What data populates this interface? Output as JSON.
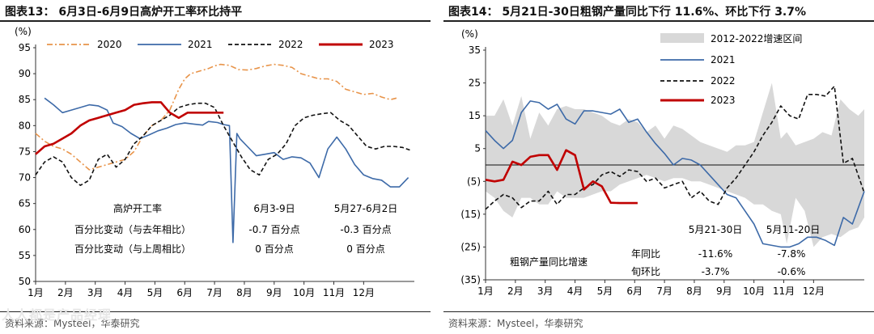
{
  "left_panel": {
    "title": "图表13： 6月3日-6月9日高炉开工率环比持平",
    "source": "资料来源：Mysteel，华泰研究",
    "annotation": {
      "header_label": "高炉开工率",
      "col1_header": "6月3-9日",
      "col2_header": "5月27-6月2日",
      "row1_label": "百分比变动（与去年相比）",
      "row1_col1": "-0.7 百分点",
      "row1_col2": "-0.3 百分点",
      "row2_label": "百分比变动（与上周相比）",
      "row2_col1": "0 百分点",
      "row2_col2": "0 百分点"
    }
  },
  "right_panel": {
    "title": "图表14： 5月21日-30日粗钢产量同比下行 11.6%、环比下行 3.7%",
    "source": "资料来源：Mysteel，华泰研究",
    "annotation": {
      "header_label": "粗钢产量同比增速",
      "col1_header": "5月21-30日",
      "col2_header": "5月11-20日",
      "row1_label": "年同比",
      "row1_col1": "-11.6%",
      "row1_col2": "-7.8%",
      "row2_label": "旬环比",
      "row2_col1": "-3.7%",
      "row2_col2": "-0.6%"
    }
  },
  "watermark": "人人都是产品经理",
  "chart_data": [
    {
      "type": "line",
      "title": "高炉开工率",
      "ylabel": "(%)",
      "ylim": [
        50,
        95
      ],
      "yticks": [
        50,
        55,
        60,
        65,
        70,
        75,
        80,
        85,
        90,
        95
      ],
      "x_domain": [
        0,
        12.7
      ],
      "x_tick_labels": [
        "1月",
        "2月",
        "3月",
        "4月",
        "5月",
        "6月",
        "7月",
        "8月",
        "9月",
        "10月",
        "11月",
        "12月"
      ],
      "series": [
        {
          "name": "2020",
          "color": "#e8944a",
          "style": "dashdot",
          "x": [
            0,
            0.3,
            0.6,
            0.9,
            1.2,
            1.5,
            1.8,
            2.1,
            2.4,
            2.7,
            3.0,
            3.3,
            3.6,
            3.9,
            4.2,
            4.5,
            4.8,
            5.0,
            5.2,
            5.5,
            5.8,
            6.0,
            6.2,
            6.5,
            6.8,
            7.1,
            7.4,
            7.7,
            8.0,
            8.3,
            8.6,
            8.9,
            9.2,
            9.5,
            9.8,
            10.1,
            10.4,
            10.7,
            11.0,
            11.3,
            11.6,
            11.9,
            12.1
          ],
          "values": [
            78.5,
            77,
            76,
            75.5,
            74.5,
            73,
            71.5,
            72,
            72.5,
            73,
            73.5,
            75,
            78,
            80,
            81,
            83,
            87,
            89,
            90,
            90.5,
            91,
            91.5,
            91.8,
            91.6,
            90.8,
            90.7,
            91,
            91.5,
            91.8,
            91.6,
            91.2,
            90,
            89.5,
            89,
            89,
            88.5,
            87,
            86.5,
            86,
            86.2,
            85.5,
            85,
            85.3
          ]
        },
        {
          "name": "2021",
          "color": "#3d6aa8",
          "style": "solid",
          "x": [
            0.3,
            0.6,
            0.9,
            1.2,
            1.5,
            1.8,
            2.1,
            2.4,
            2.6,
            2.9,
            3.2,
            3.5,
            3.8,
            4.1,
            4.4,
            4.7,
            5.0,
            5.3,
            5.6,
            5.8,
            6.1,
            6.3,
            6.5,
            6.62,
            6.75,
            6.85,
            7.1,
            7.4,
            7.7,
            8.0,
            8.3,
            8.6,
            8.9,
            9.2,
            9.5,
            9.8,
            10.1,
            10.4,
            10.7,
            11.0,
            11.3,
            11.6,
            11.9,
            12.2,
            12.5
          ],
          "values": [
            85.3,
            84,
            82.5,
            83,
            83.5,
            84,
            83.8,
            83,
            80.5,
            79.8,
            78.5,
            77.5,
            78.2,
            79,
            79.5,
            80.2,
            80.5,
            80.3,
            80.1,
            80.8,
            80.6,
            80.2,
            80,
            57.5,
            78.5,
            77.5,
            76,
            74.2,
            74.5,
            74.8,
            73.5,
            74,
            73.8,
            72.8,
            70,
            75.5,
            77.8,
            75.5,
            72.5,
            70.5,
            69.8,
            69.5,
            68.2,
            68.2,
            70
          ]
        },
        {
          "name": "2022",
          "color": "#111111",
          "style": "dashed",
          "x": [
            0,
            0.3,
            0.6,
            0.9,
            1.2,
            1.5,
            1.8,
            2.1,
            2.4,
            2.7,
            3.0,
            3.3,
            3.6,
            3.9,
            4.2,
            4.5,
            4.8,
            5.1,
            5.4,
            5.7,
            6.0,
            6.3,
            6.6,
            6.9,
            7.2,
            7.5,
            7.8,
            8.1,
            8.4,
            8.7,
            9.0,
            9.3,
            9.6,
            9.9,
            10.2,
            10.5,
            10.8,
            11.1,
            11.4,
            11.7,
            12.0,
            12.3,
            12.6
          ],
          "values": [
            70.5,
            73,
            74,
            73,
            70,
            68.5,
            69.5,
            73.5,
            74.5,
            72,
            73.5,
            76.5,
            78,
            80,
            81,
            82,
            83.5,
            84,
            84.3,
            84.3,
            83.5,
            80,
            77,
            74,
            71.5,
            70.5,
            73.5,
            74.5,
            76.5,
            80,
            81.5,
            82,
            82.3,
            82.5,
            81,
            80,
            78,
            76,
            75.5,
            76,
            76,
            75.8,
            75.2
          ]
        },
        {
          "name": "2023",
          "color": "#c00000",
          "style": "solid",
          "x": [
            0,
            0.3,
            0.6,
            0.9,
            1.2,
            1.5,
            1.8,
            2.1,
            2.4,
            2.7,
            3.0,
            3.3,
            3.6,
            3.9,
            4.2,
            4.5,
            4.8,
            5.1,
            5.4,
            5.7,
            6.0,
            6.3
          ],
          "values": [
            74.5,
            76,
            76.5,
            77.5,
            78.5,
            80,
            81,
            81.5,
            82,
            82.5,
            83,
            84,
            84.3,
            84.5,
            84.5,
            82.5,
            81.5,
            82.5,
            82.5,
            82.5,
            82.5,
            82.5
          ]
        }
      ]
    },
    {
      "type": "line",
      "title": "粗钢产量同比增速",
      "ylabel": "(%)",
      "ylim": [
        -35,
        35
      ],
      "yticks": [
        -35,
        -25,
        -15,
        -5,
        5,
        15,
        25,
        35
      ],
      "ytick_labels": [
        "(35)",
        "(25)",
        "(15)",
        "(5)",
        "5",
        "15",
        "25",
        "35"
      ],
      "x_domain": [
        0,
        12.7
      ],
      "x_tick_labels": [
        "1月",
        "2月",
        "3月",
        "4月",
        "5月",
        "6月",
        "7月",
        "8月",
        "9月",
        "10月",
        "11月",
        "12月"
      ],
      "band": {
        "name": "2012-2022增速区间",
        "color": "#d8d8d8",
        "x": [
          0,
          0.3,
          0.6,
          0.9,
          1.2,
          1.5,
          1.8,
          2.1,
          2.4,
          2.7,
          3.0,
          3.3,
          3.6,
          3.9,
          4.2,
          4.5,
          4.8,
          5.1,
          5.4,
          5.7,
          6.0,
          6.3,
          6.6,
          6.9,
          7.2,
          7.5,
          7.8,
          8.1,
          8.4,
          8.7,
          9.0,
          9.3,
          9.6,
          9.9,
          10.1,
          10.4,
          10.7,
          11.0,
          11.3,
          11.6,
          11.9,
          12.2,
          12.5,
          12.7
        ],
        "upper": [
          15,
          15,
          20,
          12,
          21,
          8,
          16,
          12,
          17,
          18,
          17,
          17,
          16,
          15,
          13,
          12,
          14,
          13,
          10,
          12,
          8,
          12,
          11,
          9,
          7,
          6,
          5,
          4,
          6,
          6,
          7,
          16,
          25,
          8,
          10,
          6,
          7,
          8,
          10,
          9,
          20,
          17,
          15,
          17
        ],
        "lower": [
          -8,
          -10,
          -14,
          -16,
          -10,
          -10,
          -12,
          -12,
          -8,
          -10,
          -10,
          -10,
          -9,
          -8,
          -8,
          -6,
          -5,
          -4,
          -3,
          -4,
          -5,
          -4,
          -4,
          -5,
          -5,
          -6,
          -7,
          -8,
          -9,
          -10,
          -12,
          -12,
          -14,
          -15,
          -24,
          -10,
          -14,
          -25,
          -22,
          -21,
          -22,
          -20,
          -19,
          -16
        ]
      },
      "series": [
        {
          "name": "2021",
          "color": "#3d6aa8",
          "style": "solid",
          "x": [
            0,
            0.3,
            0.6,
            0.9,
            1.2,
            1.5,
            1.8,
            2.1,
            2.4,
            2.7,
            3.0,
            3.3,
            3.6,
            3.9,
            4.2,
            4.5,
            4.8,
            5.1,
            5.4,
            5.7,
            6.0,
            6.3,
            6.6,
            6.9,
            7.2,
            7.5,
            7.8,
            8.1,
            8.4,
            8.7,
            9.0,
            9.3,
            9.6,
            9.9,
            10.2,
            10.5,
            10.8,
            11.1,
            11.4,
            11.7,
            12.0,
            12.3,
            12.7
          ],
          "values": [
            10.5,
            7.5,
            5,
            7.5,
            16,
            19.5,
            19,
            17,
            18.5,
            14,
            12.5,
            16.5,
            16.5,
            16,
            15.5,
            17,
            13,
            14,
            10,
            6.5,
            3.5,
            0,
            2,
            1.5,
            0,
            -3,
            -6,
            -9,
            -10,
            -14,
            -18,
            -24,
            -24.5,
            -25,
            -25,
            -24,
            -22,
            -22,
            -23,
            -24.5,
            -16,
            -18,
            -8
          ]
        },
        {
          "name": "2022",
          "color": "#111111",
          "style": "dashed",
          "x": [
            0,
            0.3,
            0.6,
            0.9,
            1.2,
            1.5,
            1.8,
            2.1,
            2.4,
            2.7,
            3.0,
            3.3,
            3.6,
            3.9,
            4.2,
            4.5,
            4.8,
            5.1,
            5.4,
            5.7,
            6.0,
            6.3,
            6.6,
            6.9,
            7.2,
            7.5,
            7.8,
            8.1,
            8.4,
            8.7,
            9.0,
            9.3,
            9.6,
            9.9,
            10.2,
            10.5,
            10.8,
            11.1,
            11.4,
            11.7,
            12.0,
            12.3,
            12.7
          ],
          "values": [
            -13.5,
            -11,
            -9,
            -10,
            -13,
            -11,
            -11,
            -8,
            -12,
            -9,
            -9,
            -7,
            -6,
            -3,
            -2,
            -3.5,
            -1.5,
            -2,
            -5,
            -4,
            -7,
            -6,
            -5,
            -10,
            -8,
            -11,
            -12,
            -7,
            -4,
            0,
            4,
            9,
            13,
            18,
            15,
            14,
            21.5,
            21.5,
            21,
            24,
            0.5,
            2,
            -8.5
          ]
        },
        {
          "name": "2023",
          "color": "#c00000",
          "style": "solid",
          "x": [
            0,
            0.3,
            0.6,
            0.9,
            1.2,
            1.5,
            1.8,
            2.1,
            2.4,
            2.7,
            3.0,
            3.3,
            3.6,
            3.9,
            4.2,
            4.5,
            4.8,
            5.1
          ],
          "values": [
            -4.5,
            -5,
            -4.5,
            1,
            0,
            2.5,
            3,
            3,
            -1.5,
            4.5,
            3,
            -7.5,
            -5,
            -6.5,
            -11.5,
            -11.6,
            -11.6,
            -11.6
          ]
        }
      ]
    }
  ]
}
